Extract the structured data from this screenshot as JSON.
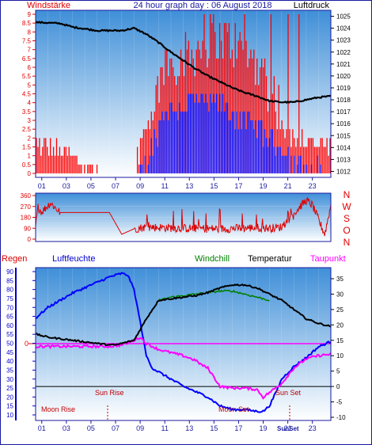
{
  "panel1": {
    "title": "24 hour graph day : 06 August 2018",
    "left_label": "Windstärke",
    "right_label": "Luftdruck",
    "left_ticks": [
      "0",
      "0.5",
      "1",
      "1.5",
      "2",
      "2.5",
      "3",
      "3.5",
      "4",
      "4.5",
      "5",
      "5.5",
      "6",
      "6.5",
      "7",
      "7.5",
      "8",
      "8.5",
      "9"
    ],
    "right_ticks": [
      "1012",
      "1013",
      "1014",
      "1015",
      "1016",
      "1017",
      "1018",
      "1019",
      "1020",
      "1021",
      "1022",
      "1023",
      "1024",
      "1025"
    ],
    "hour_labels": [
      "01",
      "03",
      "05",
      "07",
      "09",
      "11",
      "13",
      "15",
      "17",
      "19",
      "21",
      "23"
    ]
  },
  "panel2": {
    "left_ticks": [
      "0",
      "90",
      "180",
      "270",
      "360"
    ],
    "right_letters": [
      "N",
      "W",
      "S",
      "O",
      "N"
    ]
  },
  "panel3": {
    "labels": {
      "regen": "Regen",
      "luftfeuchte": "Luftfeuchte",
      "windchill": "Windchill",
      "temperatur": "Temperatur",
      "taupunkt": "Taupunkt"
    },
    "left_ticks": [
      "10",
      "15",
      "20",
      "25",
      "30",
      "35",
      "40",
      "45",
      "50",
      "55",
      "60",
      "65",
      "70",
      "75",
      "80",
      "85",
      "90"
    ],
    "right_ticks": [
      "-10",
      "-5",
      "0",
      "5",
      "10",
      "15",
      "20",
      "25",
      "30",
      "35"
    ],
    "rain_zero_label": "0",
    "annotations": {
      "sun_rise": "Sun Rise",
      "sun_set": "Sun Set",
      "moon_rise": "Moon Rise",
      "moon_set": "Moon Set",
      "sun_set_bottom": "SunSet"
    },
    "hour_labels": [
      "01",
      "03",
      "05",
      "07",
      "09",
      "11",
      "13",
      "15",
      "17",
      "19",
      "21",
      "23"
    ]
  },
  "colors": {
    "frame": "#1a1aa0",
    "sky_top": "#3f8fd8",
    "sky_bottom": "#ffffff",
    "wind_gust": "#ff0000",
    "wind_avg": "#0000ff",
    "pressure": "#000000",
    "direction": "#dd0000",
    "humidity": "#0000ff",
    "temperature": "#000000",
    "windchill": "#008000",
    "dewpoint": "#ff00ff",
    "rain": "#ff0000"
  },
  "chart_data": [
    {
      "type": "bar",
      "name": "wind-pressure",
      "x_unit": "hour",
      "ylim_left": [
        0,
        9
      ],
      "ylim_right": [
        1011.5,
        1025.5
      ],
      "wind_gust_profile": [
        [
          0,
          1.5
        ],
        [
          2.3,
          1
        ],
        [
          5,
          0
        ],
        [
          8,
          0
        ],
        [
          8.5,
          1.5
        ],
        [
          9.5,
          3
        ],
        [
          10.5,
          6
        ],
        [
          12.5,
          6.5
        ],
        [
          14.5,
          7.5
        ],
        [
          16,
          7
        ],
        [
          18,
          6
        ],
        [
          19.5,
          4
        ],
        [
          20.5,
          2
        ],
        [
          23.5,
          1.5
        ]
      ],
      "wind_avg_profile": [
        [
          0,
          0
        ],
        [
          2.3,
          0
        ],
        [
          8.5,
          0
        ],
        [
          9.5,
          1.5
        ],
        [
          10.5,
          3.5
        ],
        [
          12.5,
          4
        ],
        [
          14.5,
          4
        ],
        [
          17,
          3
        ],
        [
          19,
          2
        ],
        [
          20,
          1.5
        ],
        [
          21,
          0.5
        ],
        [
          23.5,
          0
        ]
      ],
      "pressure_profile": [
        [
          0,
          1024.5
        ],
        [
          2,
          1024.4
        ],
        [
          3,
          1024.1
        ],
        [
          5,
          1023.8
        ],
        [
          7,
          1023.8
        ],
        [
          8,
          1024
        ],
        [
          9,
          1023.5
        ],
        [
          10,
          1022.8
        ],
        [
          11,
          1022
        ],
        [
          12,
          1021.3
        ],
        [
          13,
          1020.6
        ],
        [
          14,
          1020
        ],
        [
          15,
          1019.5
        ],
        [
          16,
          1019
        ],
        [
          17,
          1018.6
        ],
        [
          18,
          1018.3
        ],
        [
          19,
          1017.9
        ],
        [
          20,
          1017.8
        ],
        [
          21,
          1017.8
        ],
        [
          22,
          1018
        ],
        [
          23,
          1018.2
        ],
        [
          24,
          1018.3
        ]
      ]
    },
    {
      "type": "line",
      "name": "wind-direction",
      "x_unit": "hour",
      "ylim": [
        0,
        360
      ],
      "direction_profile": [
        [
          0,
          100
        ],
        [
          0.2,
          265
        ],
        [
          0.5,
          225
        ],
        [
          1.2,
          300
        ],
        [
          2,
          220
        ],
        [
          4,
          220
        ],
        [
          6,
          220
        ],
        [
          7,
          40
        ],
        [
          8,
          85
        ],
        [
          9,
          100
        ],
        [
          12,
          90
        ],
        [
          15,
          85
        ],
        [
          18,
          95
        ],
        [
          19,
          90
        ],
        [
          20,
          100
        ],
        [
          21.5,
          270
        ],
        [
          22,
          320
        ],
        [
          22.5,
          280
        ],
        [
          23.5,
          40
        ],
        [
          24,
          280
        ]
      ]
    },
    {
      "type": "line",
      "name": "humidity-temperature",
      "x_unit": "hour",
      "ylim_left": [
        10,
        90
      ],
      "ylim_right": [
        -10,
        37
      ],
      "humidity_profile": [
        [
          0,
          64
        ],
        [
          1,
          70
        ],
        [
          3,
          78
        ],
        [
          5,
          84
        ],
        [
          6,
          87
        ],
        [
          7,
          89
        ],
        [
          7.5,
          88
        ],
        [
          8,
          80
        ],
        [
          8.5,
          62
        ],
        [
          9,
          43
        ],
        [
          9.5,
          36
        ],
        [
          10,
          34
        ],
        [
          11,
          30
        ],
        [
          12,
          26
        ],
        [
          13,
          23
        ],
        [
          14,
          20
        ],
        [
          15,
          15
        ],
        [
          16,
          13
        ],
        [
          17,
          13
        ],
        [
          18,
          12
        ],
        [
          18.5,
          12
        ],
        [
          19,
          15
        ],
        [
          19.5,
          22
        ],
        [
          20,
          30
        ],
        [
          21,
          37
        ],
        [
          22,
          42
        ],
        [
          23,
          48
        ],
        [
          24,
          51
        ]
      ],
      "temperature_profile": [
        [
          0,
          17
        ],
        [
          1,
          16
        ],
        [
          3,
          15
        ],
        [
          5,
          14
        ],
        [
          6,
          13.5
        ],
        [
          6.5,
          13.5
        ],
        [
          7,
          14
        ],
        [
          8,
          15
        ],
        [
          9,
          22
        ],
        [
          10,
          28
        ],
        [
          11,
          28.5
        ],
        [
          12,
          29
        ],
        [
          13,
          29.5
        ],
        [
          14,
          30.5
        ],
        [
          15,
          32
        ],
        [
          16,
          33
        ],
        [
          17,
          33
        ],
        [
          18,
          32
        ],
        [
          19,
          30
        ],
        [
          20,
          28
        ],
        [
          21,
          25
        ],
        [
          22,
          22
        ],
        [
          23,
          20.5
        ],
        [
          24,
          19.5
        ]
      ],
      "windchill_profile": [
        [
          10,
          28
        ],
        [
          11,
          29
        ],
        [
          12,
          29.5
        ],
        [
          13,
          30
        ],
        [
          14,
          30.5
        ],
        [
          15,
          31
        ],
        [
          16,
          31
        ],
        [
          17,
          30
        ],
        [
          18,
          29
        ],
        [
          19,
          28
        ]
      ],
      "dewpoint_profile": [
        [
          0,
          13
        ],
        [
          3,
          13
        ],
        [
          6,
          13
        ],
        [
          7,
          13.5
        ],
        [
          8,
          15
        ],
        [
          8.5,
          16
        ],
        [
          9,
          14
        ],
        [
          10,
          12
        ],
        [
          11,
          11
        ],
        [
          12,
          10
        ],
        [
          13,
          8.5
        ],
        [
          13.5,
          7
        ],
        [
          14,
          6
        ],
        [
          14.5,
          3
        ],
        [
          15,
          0
        ],
        [
          16,
          -0.5
        ],
        [
          17,
          -0.5
        ],
        [
          18,
          -1
        ],
        [
          18.5,
          -3.5
        ],
        [
          19,
          -2
        ],
        [
          20,
          1
        ],
        [
          21,
          6
        ],
        [
          22,
          9
        ],
        [
          23,
          10
        ],
        [
          24,
          10.5
        ]
      ],
      "rain": 0
    }
  ]
}
